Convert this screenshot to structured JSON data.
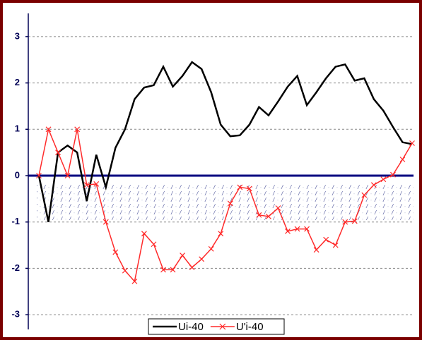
{
  "chart_data": {
    "type": "line",
    "categories": [
      null,
      null,
      null,
      null,
      null,
      null,
      null,
      null,
      null,
      null,
      null,
      null,
      null,
      null,
      null,
      null,
      null,
      null,
      null,
      null,
      null,
      null,
      null,
      null,
      null,
      null,
      null,
      null,
      null,
      null,
      null,
      null,
      null,
      null,
      null,
      null,
      null,
      null,
      null,
      null
    ],
    "series": [
      {
        "name": "Ui-40",
        "color": "#000000",
        "marker": "none",
        "values": [
          0,
          -1,
          0.5,
          0.65,
          0.5,
          -0.55,
          0.45,
          -0.25,
          0.6,
          1.0,
          1.65,
          1.9,
          1.95,
          2.35,
          1.92,
          2.15,
          2.45,
          2.3,
          1.8,
          1.1,
          0.85,
          0.87,
          1.1,
          1.48,
          1.3,
          1.6,
          1.92,
          2.15,
          1.52,
          1.8,
          2.1,
          2.35,
          2.4,
          2.05,
          2.1,
          1.65,
          1.4,
          1.05,
          0.72,
          0.68
        ]
      },
      {
        "name": "U'i-40",
        "color": "#ff2a2a",
        "marker": "x",
        "values": [
          0,
          1.0,
          0.5,
          0,
          1.0,
          -0.2,
          -0.18,
          -1.0,
          -1.65,
          -2.05,
          -2.28,
          -1.25,
          -1.48,
          -2.03,
          -2.03,
          -1.72,
          -1.98,
          -1.8,
          -1.58,
          -1.25,
          -0.6,
          -0.25,
          -0.28,
          -0.85,
          -0.88,
          -0.7,
          -1.2,
          -1.15,
          -1.15,
          -1.6,
          -1.38,
          -1.5,
          -1.0,
          -0.98,
          -0.42,
          -0.2,
          -0.08,
          0.02,
          0.35,
          0.7
        ]
      }
    ],
    "ylim": [
      -3.5,
      3.5
    ],
    "yticks": [
      -3,
      -2,
      -1,
      0,
      1,
      2,
      3
    ],
    "grid": true,
    "legend": "bottom"
  }
}
